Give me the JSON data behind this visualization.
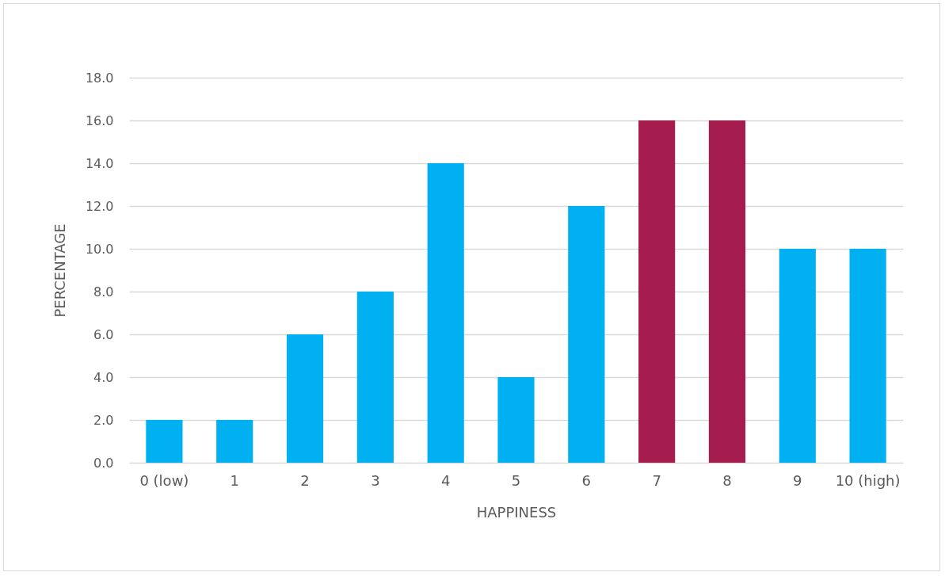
{
  "chart_data": {
    "type": "bar",
    "xlabel": "HAPPINESS",
    "ylabel": "PERCENTAGE",
    "categories": [
      "0 (low)",
      "1",
      "2",
      "3",
      "4",
      "5",
      "6",
      "7",
      "8",
      "9",
      "10 (high)"
    ],
    "values": [
      2,
      2,
      6,
      8,
      14,
      4,
      12,
      16,
      16,
      10,
      10
    ],
    "colors": [
      "#00b0f0",
      "#00b0f0",
      "#00b0f0",
      "#00b0f0",
      "#00b0f0",
      "#00b0f0",
      "#00b0f0",
      "#a51c4f",
      "#a51c4f",
      "#00b0f0",
      "#00b0f0"
    ],
    "ylim": [
      0,
      18
    ],
    "yticks": [
      {
        "value": 0,
        "label": "0.0"
      },
      {
        "value": 2,
        "label": "2.0"
      },
      {
        "value": 4,
        "label": "4.0"
      },
      {
        "value": 6,
        "label": "6.0"
      },
      {
        "value": 8,
        "label": "8.0"
      },
      {
        "value": 10,
        "label": "10.0"
      },
      {
        "value": 12,
        "label": "12.0"
      },
      {
        "value": 14,
        "label": "14.0"
      },
      {
        "value": 16,
        "label": "16.0"
      },
      {
        "value": 18,
        "label": "18.0"
      }
    ],
    "grid": "y"
  }
}
